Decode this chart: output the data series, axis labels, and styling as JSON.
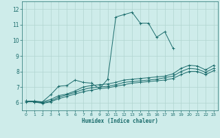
{
  "xlabel": "Humidex (Indice chaleur)",
  "bg_color": "#ceecea",
  "grid_color": "#b0d4d0",
  "line_color": "#1a6b6b",
  "xlim": [
    -0.5,
    23.5
  ],
  "ylim": [
    5.5,
    12.5
  ],
  "xticks": [
    0,
    1,
    2,
    3,
    4,
    5,
    6,
    7,
    8,
    9,
    10,
    11,
    12,
    13,
    14,
    15,
    16,
    17,
    18,
    19,
    20,
    21,
    22,
    23
  ],
  "yticks": [
    6,
    7,
    8,
    9,
    10,
    11,
    12
  ],
  "series": [
    {
      "x": [
        0,
        1,
        2,
        3,
        4,
        5,
        6,
        7,
        8,
        9,
        10,
        11,
        12,
        13,
        14,
        15,
        16,
        17,
        18
      ],
      "y": [
        6.1,
        6.1,
        6.05,
        6.5,
        7.05,
        7.1,
        7.45,
        7.3,
        7.25,
        6.9,
        7.5,
        11.5,
        11.65,
        11.8,
        11.1,
        11.1,
        10.2,
        10.55,
        9.5
      ]
    },
    {
      "x": [
        0,
        1,
        2,
        3,
        4,
        5,
        6,
        7,
        8,
        9,
        10,
        11,
        12,
        13,
        14,
        15,
        16,
        17,
        18,
        19,
        20,
        21,
        22,
        23
      ],
      "y": [
        6.1,
        6.05,
        6.05,
        6.2,
        6.45,
        6.55,
        6.75,
        7.0,
        7.1,
        7.15,
        7.2,
        7.3,
        7.45,
        7.5,
        7.55,
        7.6,
        7.65,
        7.7,
        7.85,
        8.2,
        8.4,
        8.35,
        8.1,
        8.4
      ]
    },
    {
      "x": [
        0,
        1,
        2,
        3,
        4,
        5,
        6,
        7,
        8,
        9,
        10,
        11,
        12,
        13,
        14,
        15,
        16,
        17,
        18,
        19,
        20,
        21,
        22,
        23
      ],
      "y": [
        6.1,
        6.05,
        6.0,
        6.1,
        6.35,
        6.5,
        6.65,
        6.85,
        6.95,
        7.0,
        7.05,
        7.15,
        7.3,
        7.35,
        7.4,
        7.45,
        7.5,
        7.6,
        7.7,
        8.0,
        8.2,
        8.15,
        7.95,
        8.2
      ]
    },
    {
      "x": [
        0,
        1,
        2,
        3,
        4,
        5,
        6,
        7,
        8,
        9,
        10,
        11,
        12,
        13,
        14,
        15,
        16,
        17,
        18,
        19,
        20,
        21,
        22,
        23
      ],
      "y": [
        6.05,
        6.05,
        5.95,
        6.05,
        6.25,
        6.4,
        6.55,
        6.7,
        6.8,
        6.9,
        6.95,
        7.05,
        7.15,
        7.25,
        7.3,
        7.35,
        7.4,
        7.45,
        7.55,
        7.8,
        8.0,
        8.0,
        7.8,
        8.05
      ]
    }
  ]
}
